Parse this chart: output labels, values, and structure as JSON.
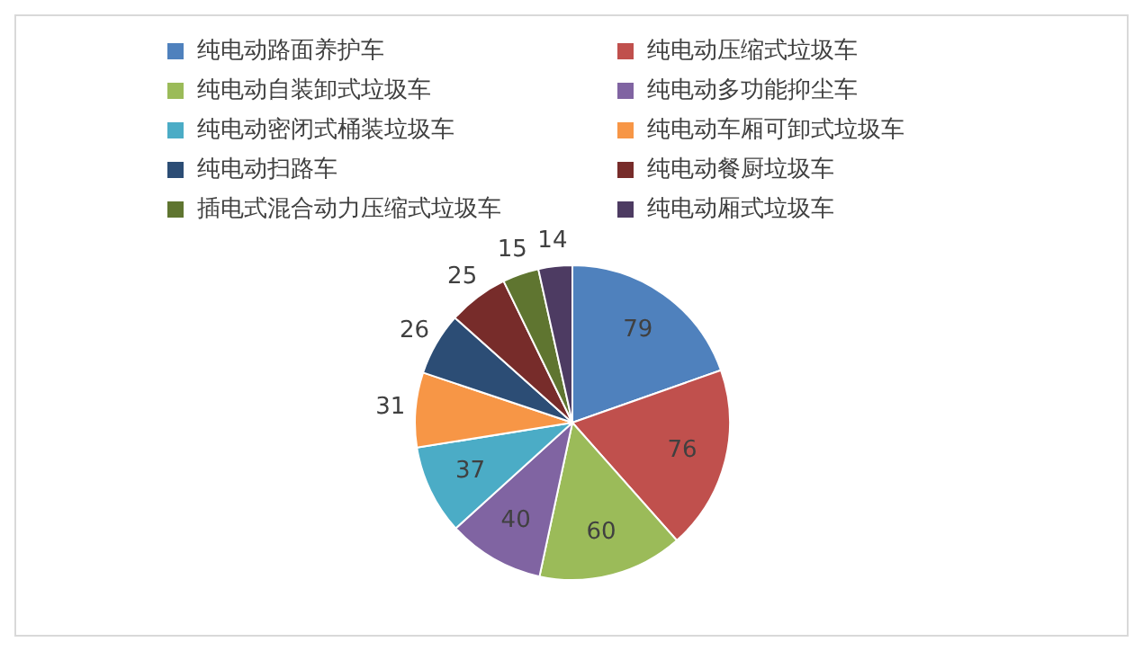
{
  "chart_data": {
    "type": "pie",
    "legend": "top",
    "data_labels": true,
    "categories": [
      "纯电动路面养护车",
      "纯电动压缩式垃圾车",
      "纯电动自装卸式垃圾车",
      "纯电动多功能抑尘车",
      "纯电动密闭式桶装垃圾车",
      "纯电动车厢可卸式垃圾车",
      "纯电动扫路车",
      "纯电动餐厨垃圾车",
      "插电式混合动力压缩式垃圾车",
      "纯电动厢式垃圾车"
    ],
    "values": [
      79,
      76,
      60,
      40,
      37,
      31,
      26,
      25,
      15,
      14
    ],
    "colors": [
      "#4f81bd",
      "#c0504d",
      "#9bbb59",
      "#8064a2",
      "#4bacc6",
      "#f79646",
      "#2c4d75",
      "#772c2a",
      "#5f7530",
      "#4d3b62"
    ]
  }
}
